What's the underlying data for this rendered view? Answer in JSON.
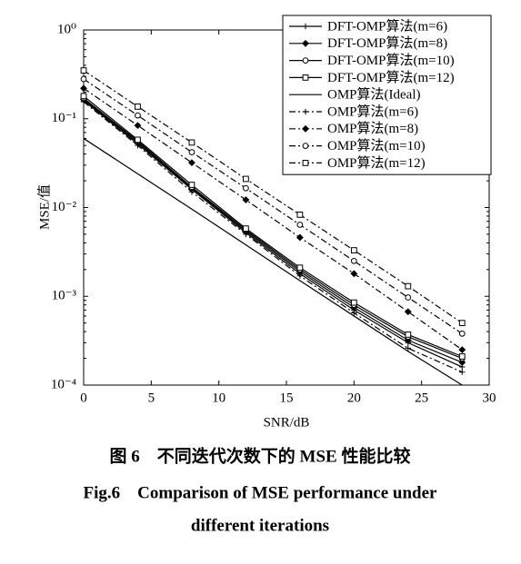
{
  "chart_data": {
    "type": "line",
    "x_label": "SNR/dB",
    "y_label": "MSE/值",
    "log_y": true,
    "x": [
      0,
      4,
      8,
      12,
      16,
      20,
      24,
      28
    ],
    "xlim": [
      0,
      30
    ],
    "xticks": [
      0,
      5,
      10,
      15,
      20,
      25,
      30
    ],
    "ylim": [
      0.0001,
      1
    ],
    "yticks": [
      {
        "value": 1,
        "label": "10⁰"
      },
      {
        "value": 0.1,
        "label": "10⁻¹"
      },
      {
        "value": 0.01,
        "label": "10⁻²"
      },
      {
        "value": 0.001,
        "label": "10⁻³"
      },
      {
        "value": 0.0001,
        "label": "10⁻⁴"
      }
    ],
    "legend": "top-right",
    "series": [
      {
        "name": "DFT-OMP算法(m=6)",
        "color": "#000000",
        "marker": "plus",
        "linestyle": "solid",
        "values": [
          0.16,
          0.052,
          0.016,
          0.0052,
          0.0018,
          0.0007,
          0.0003,
          0.00016
        ]
      },
      {
        "name": "DFT-OMP算法(m=8)",
        "color": "#000000",
        "marker": "diamond",
        "linestyle": "solid",
        "values": [
          0.165,
          0.054,
          0.0165,
          0.0054,
          0.0019,
          0.00075,
          0.00032,
          0.00018
        ]
      },
      {
        "name": "DFT-OMP算法(m=10)",
        "color": "#000000",
        "marker": "circle",
        "linestyle": "solid",
        "values": [
          0.17,
          0.056,
          0.017,
          0.0056,
          0.002,
          0.0008,
          0.00035,
          0.0002
        ]
      },
      {
        "name": "DFT-OMP算法(m=12)",
        "color": "#000000",
        "marker": "square",
        "linestyle": "solid",
        "values": [
          0.18,
          0.058,
          0.018,
          0.0058,
          0.0021,
          0.00085,
          0.00037,
          0.00021
        ]
      },
      {
        "name": "OMP算法(Ideal)",
        "color": "#000000",
        "marker": "none",
        "linestyle": "solid",
        "values": [
          0.06,
          0.024,
          0.0096,
          0.0038,
          0.0015,
          0.0006,
          0.00024,
          0.0001
        ]
      },
      {
        "name": "OMP算法(m=6)",
        "color": "#000000",
        "marker": "plus",
        "linestyle": "dashdot",
        "values": [
          0.155,
          0.05,
          0.015,
          0.005,
          0.0017,
          0.00065,
          0.00026,
          0.00014
        ]
      },
      {
        "name": "OMP算法(m=8)",
        "color": "#000000",
        "marker": "diamond",
        "linestyle": "dashdot",
        "values": [
          0.22,
          0.084,
          0.032,
          0.0122,
          0.0046,
          0.0018,
          0.00067,
          0.00025
        ]
      },
      {
        "name": "OMP算法(m=10)",
        "color": "#000000",
        "marker": "circle",
        "linestyle": "dashdot",
        "values": [
          0.28,
          0.109,
          0.042,
          0.0165,
          0.0064,
          0.0025,
          0.00097,
          0.00038
        ]
      },
      {
        "name": "OMP算法(m=12)",
        "color": "#000000",
        "marker": "square",
        "linestyle": "dashdot",
        "values": [
          0.35,
          0.137,
          0.054,
          0.021,
          0.0083,
          0.0033,
          0.0013,
          0.0005
        ]
      }
    ],
    "caption_cn": "图 6　不同迭代次数下的 MSE 性能比较",
    "caption_en_1": "Fig.6　Comparison of MSE performance under",
    "caption_en_2": "different iterations"
  }
}
